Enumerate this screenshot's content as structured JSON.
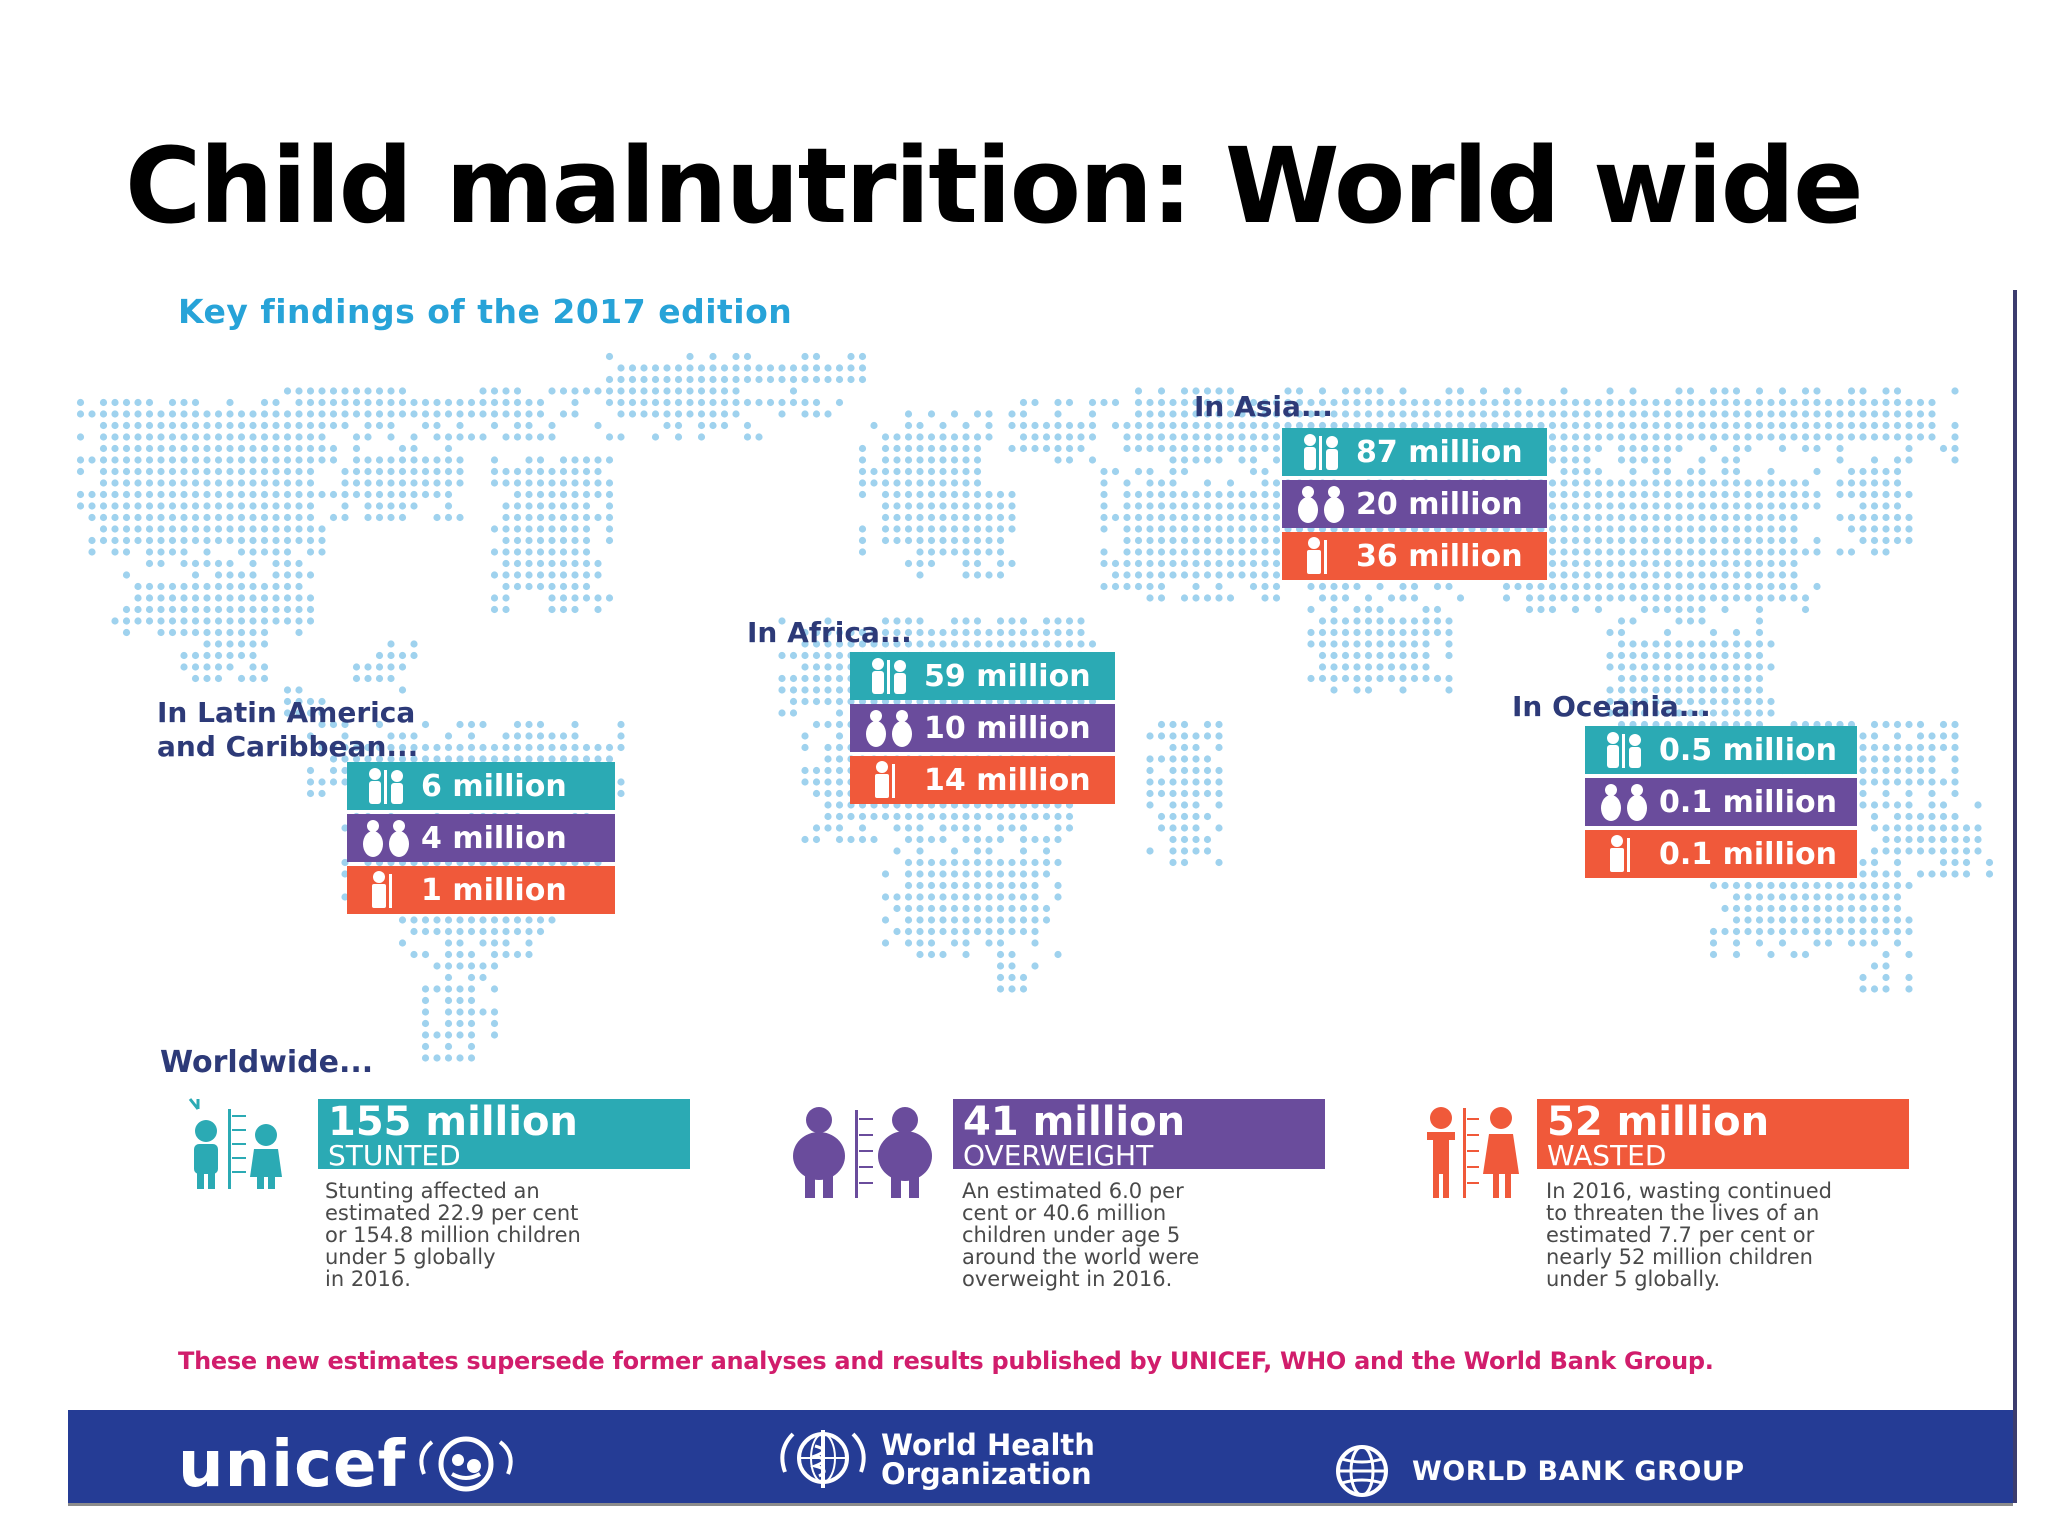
{
  "title": "Child malnutrition: World wide",
  "subtitle": "Key findings of the 2017 edition",
  "colors": {
    "stunted": "#2baab4",
    "overweight": "#6a4c9c",
    "wasted": "#f0593a",
    "map_dots": "#9fd2ee",
    "footer": "#253c95",
    "note": "#d11d6c"
  },
  "icons": {
    "stunted": "stunted-children-icon",
    "overweight": "overweight-children-icon",
    "wasted": "wasted-child-icon"
  },
  "regions": {
    "asia": {
      "label": "In Asia...",
      "stunted": "87 million",
      "overweight": "20 million",
      "wasted": "36 million"
    },
    "africa": {
      "label": "In Africa...",
      "stunted": "59 million",
      "overweight": "10 million",
      "wasted": "14 million"
    },
    "latam": {
      "label_line1": "In Latin America",
      "label_line2": "and Caribbean...",
      "stunted": "6 million",
      "overweight": "4 million",
      "wasted": "1 million"
    },
    "oceania": {
      "label": "In Oceania...",
      "stunted": "0.5 million",
      "overweight": "0.1 million",
      "wasted": "0.1 million"
    }
  },
  "worldwide": {
    "label": "Worldwide...",
    "stunted": {
      "value": "155 million",
      "category": "STUNTED",
      "description": "Stunting affected an\nestimated 22.9 per cent\nor 154.8 million children\nunder 5 globally\nin 2016."
    },
    "overweight": {
      "value": "41 million",
      "category": "OVERWEIGHT",
      "description": "An estimated 6.0 per\ncent or 40.6 million\nchildren under age 5\naround the world were\noverweight in 2016."
    },
    "wasted": {
      "value": "52 million",
      "category": "WASTED",
      "description": "In 2016, wasting continued\nto threaten the lives of an\nestimated 7.7 per cent or\nnearly 52 million children\nunder 5 globally."
    }
  },
  "footnote": "These new estimates supersede former analyses and results published by UNICEF, WHO and the World Bank Group.",
  "footer": {
    "unicef": "unicef",
    "who_line1": "World Health",
    "who_line2": "Organization",
    "worldbank": "WORLD BANK GROUP"
  }
}
